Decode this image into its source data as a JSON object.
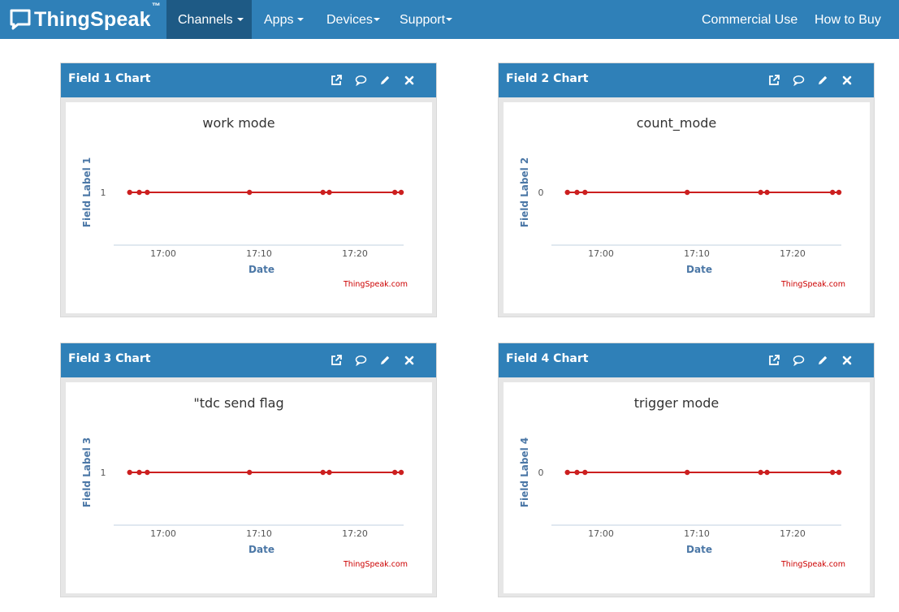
{
  "navbar": {
    "brand": "ThingSpeak",
    "brand_tm": "™",
    "items": [
      {
        "label": "Channels",
        "active": true,
        "dropdown": true
      },
      {
        "label": "Apps",
        "active": false,
        "dropdown": true
      },
      {
        "label": "Devices",
        "active": false,
        "dropdown": true
      },
      {
        "label": "Support",
        "active": false,
        "dropdown": true
      }
    ],
    "right_items": [
      {
        "label": "Commercial Use"
      },
      {
        "label": "How to Buy"
      }
    ]
  },
  "panel_icons": [
    "external-link-icon",
    "comment-icon",
    "pencil-icon",
    "close-icon"
  ],
  "panels": [
    {
      "title": "Field 1 Chart"
    },
    {
      "title": "Field 2 Chart"
    },
    {
      "title": "Field 3 Chart"
    },
    {
      "title": "Field 4 Chart"
    }
  ],
  "colors": {
    "navbar": "#2f80b8",
    "navbar_active": "#1e5a85",
    "series": "#cc1f1f",
    "axis_label": "#4b77a6",
    "credit": "#cc0000"
  },
  "chart_data": [
    {
      "type": "line",
      "title": "work mode",
      "xlabel": "Date",
      "ylabel": "Field Label 1",
      "credit": "ThingSpeak.com",
      "x_ticks": [
        "17:00",
        "17:10",
        "17:20"
      ],
      "y_ticks": [
        "1"
      ],
      "x": [
        "16:56:30",
        "16:57:30",
        "16:58:20",
        "17:09:00",
        "17:16:40",
        "17:17:20",
        "17:24:10",
        "17:24:50"
      ],
      "values": [
        1,
        1,
        1,
        1,
        1,
        1,
        1,
        1
      ],
      "xlim": [
        "16:55",
        "17:25"
      ]
    },
    {
      "type": "line",
      "title": "count_mode",
      "xlabel": "Date",
      "ylabel": "Field Label 2",
      "credit": "ThingSpeak.com",
      "x_ticks": [
        "17:00",
        "17:10",
        "17:20"
      ],
      "y_ticks": [
        "0"
      ],
      "x": [
        "16:56:30",
        "16:57:30",
        "16:58:20",
        "17:09:00",
        "17:16:40",
        "17:17:20",
        "17:24:10",
        "17:24:50"
      ],
      "values": [
        0,
        0,
        0,
        0,
        0,
        0,
        0,
        0
      ],
      "xlim": [
        "16:55",
        "17:25"
      ]
    },
    {
      "type": "line",
      "title": "\"tdc send flag",
      "xlabel": "Date",
      "ylabel": "Field Label 3",
      "credit": "ThingSpeak.com",
      "x_ticks": [
        "17:00",
        "17:10",
        "17:20"
      ],
      "y_ticks": [
        "1"
      ],
      "x": [
        "16:56:30",
        "16:57:30",
        "16:58:20",
        "17:09:00",
        "17:16:40",
        "17:17:20",
        "17:24:10",
        "17:24:50"
      ],
      "values": [
        1,
        1,
        1,
        1,
        1,
        1,
        1,
        1
      ],
      "xlim": [
        "16:55",
        "17:25"
      ]
    },
    {
      "type": "line",
      "title": "trigger mode",
      "xlabel": "Date",
      "ylabel": "Field Label 4",
      "credit": "ThingSpeak.com",
      "x_ticks": [
        "17:00",
        "17:10",
        "17:20"
      ],
      "y_ticks": [
        "0"
      ],
      "x": [
        "16:56:30",
        "16:57:30",
        "16:58:20",
        "17:09:00",
        "17:16:40",
        "17:17:20",
        "17:24:10",
        "17:24:50"
      ],
      "values": [
        0,
        0,
        0,
        0,
        0,
        0,
        0,
        0
      ],
      "xlim": [
        "16:55",
        "17:25"
      ]
    }
  ]
}
